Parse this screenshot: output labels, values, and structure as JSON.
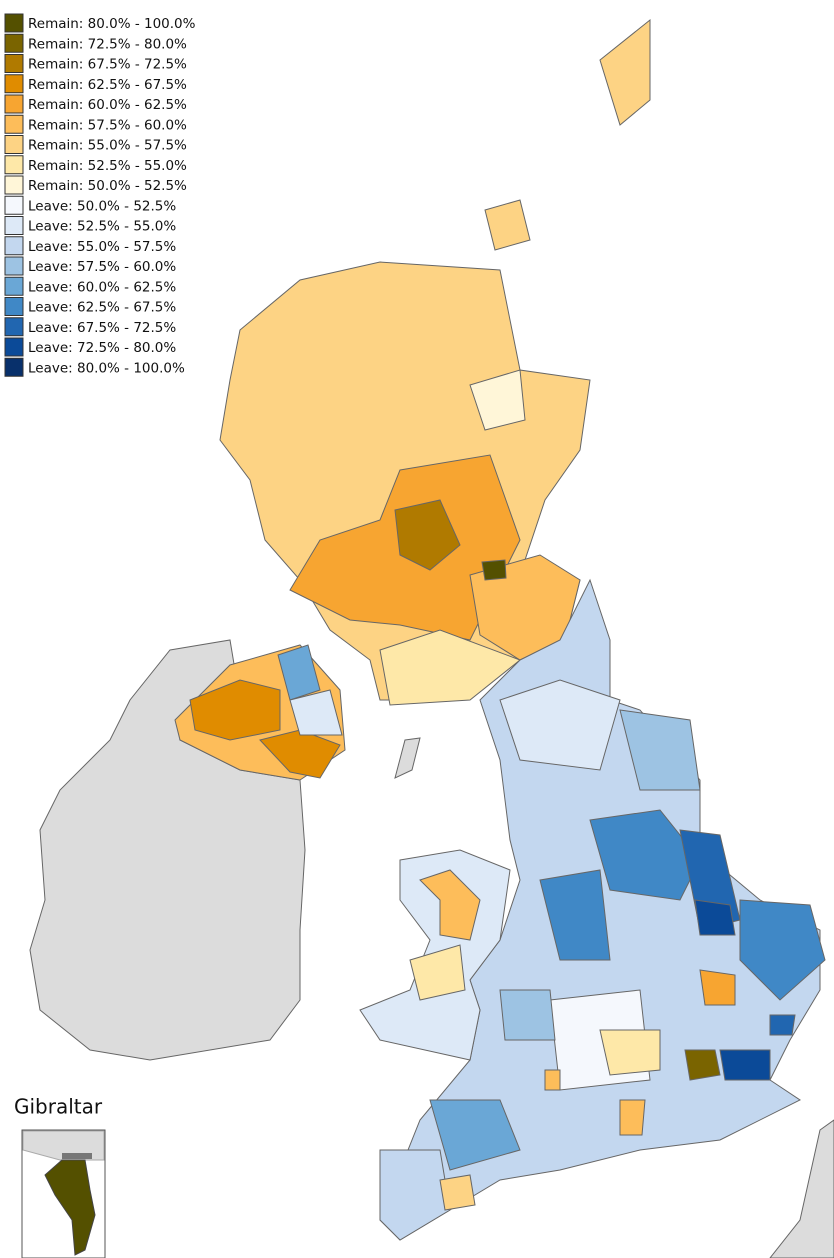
{
  "legend": [
    {
      "label": "Remain: 80.0% - 100.0%",
      "color": "#545000"
    },
    {
      "label": "Remain: 72.5% - 80.0%",
      "color": "#7a6400"
    },
    {
      "label": "Remain: 67.5% - 72.5%",
      "color": "#b07a00"
    },
    {
      "label": "Remain: 62.5% - 67.5%",
      "color": "#e08c00"
    },
    {
      "label": "Remain: 60.0% - 62.5%",
      "color": "#f7a531"
    },
    {
      "label": "Remain: 57.5% - 60.0%",
      "color": "#fdbd5a"
    },
    {
      "label": "Remain: 55.0% - 57.5%",
      "color": "#fdd384"
    },
    {
      "label": "Remain: 52.5% - 55.0%",
      "color": "#fee8a8"
    },
    {
      "label": "Remain: 50.0% - 52.5%",
      "color": "#fff6d8"
    },
    {
      "label": "Leave: 50.0% - 52.5%",
      "color": "#f5f8fd"
    },
    {
      "label": "Leave: 52.5% - 55.0%",
      "color": "#dde9f7"
    },
    {
      "label": "Leave: 55.0% - 57.5%",
      "color": "#c3d7ef"
    },
    {
      "label": "Leave: 57.5% - 60.0%",
      "color": "#9dc3e3"
    },
    {
      "label": "Leave: 60.0% - 62.5%",
      "color": "#6aa7d6"
    },
    {
      "label": "Leave: 62.5% - 67.5%",
      "color": "#4088c6"
    },
    {
      "label": "Leave: 67.5% - 72.5%",
      "color": "#2166b0"
    },
    {
      "label": "Leave: 72.5% - 80.0%",
      "color": "#0b4a98"
    },
    {
      "label": "Leave: 80.0% - 100.0%",
      "color": "#08306b"
    }
  ],
  "inset_label": "Gibraltar"
}
